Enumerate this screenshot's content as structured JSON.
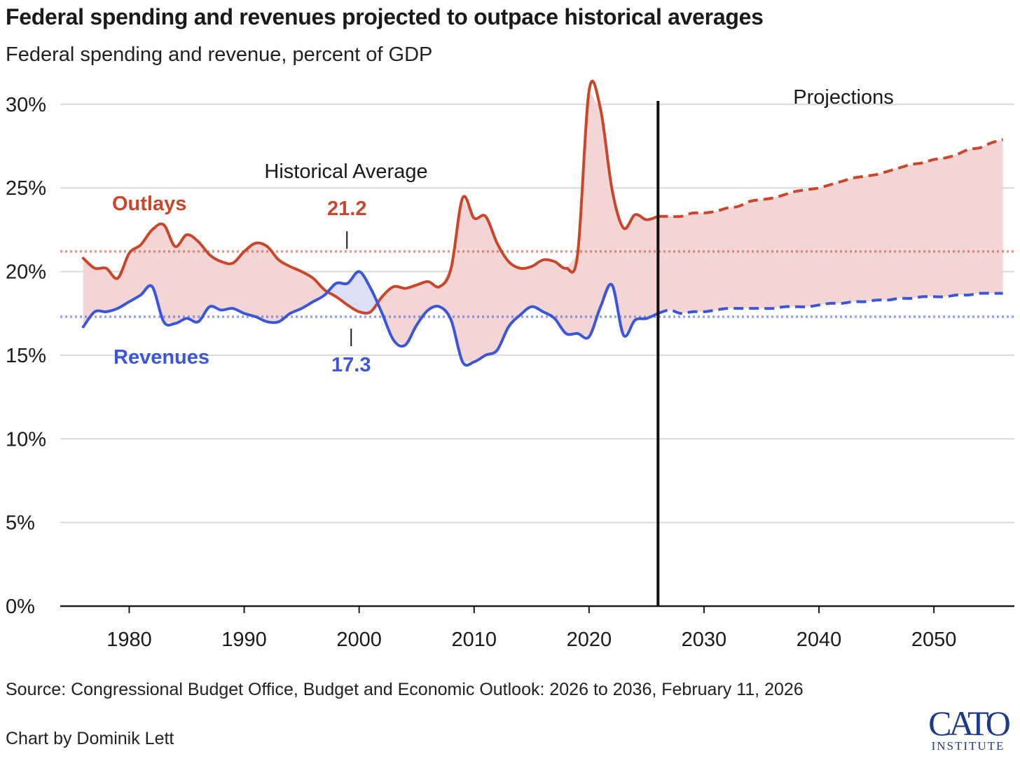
{
  "title": "Federal spending and revenues projected to outpace historical averages",
  "subtitle": "Federal spending and revenue, percent of GDP",
  "source": "Source: Congressional Budget Office, Budget and Economic Outlook: 2026 to 2036, February 11, 2026",
  "credit": "Chart by Dominik Lett",
  "logo": {
    "main": "CATO",
    "sub": "INSTITUTE"
  },
  "chart_data": {
    "type": "line",
    "xlim": [
      1974,
      2057
    ],
    "ylim": [
      0,
      31
    ],
    "y_ticks": [
      0,
      5,
      10,
      15,
      20,
      25,
      30
    ],
    "y_tick_labels": [
      "0%",
      "5%",
      "10%",
      "15%",
      "20%",
      "25%",
      "30%"
    ],
    "x_ticks": [
      1980,
      1990,
      2000,
      2010,
      2020,
      2030,
      2040,
      2050
    ],
    "x_tick_labels": [
      "1980",
      "1990",
      "2000",
      "2010",
      "2020",
      "2030",
      "2040",
      "2050"
    ],
    "grid": "horizontal",
    "projection_start": 2026,
    "projection_label": "Projections",
    "historical_average_label": "Historical Average",
    "averages": [
      {
        "series": "Outlays",
        "value": 21.2,
        "label": "21.2",
        "label_year": 1999
      },
      {
        "series": "Revenues",
        "value": 17.3,
        "label": "17.3",
        "label_year": 1999
      }
    ],
    "series": [
      {
        "name": "Outlays",
        "color": "#c9462b",
        "historical": [
          [
            1976,
            20.8
          ],
          [
            1977,
            20.2
          ],
          [
            1978,
            20.2
          ],
          [
            1979,
            19.6
          ],
          [
            1980,
            21.1
          ],
          [
            1981,
            21.6
          ],
          [
            1982,
            22.5
          ],
          [
            1983,
            22.8
          ],
          [
            1984,
            21.5
          ],
          [
            1985,
            22.2
          ],
          [
            1986,
            21.8
          ],
          [
            1987,
            21.0
          ],
          [
            1988,
            20.6
          ],
          [
            1989,
            20.5
          ],
          [
            1990,
            21.2
          ],
          [
            1991,
            21.7
          ],
          [
            1992,
            21.5
          ],
          [
            1993,
            20.7
          ],
          [
            1994,
            20.3
          ],
          [
            1995,
            20.0
          ],
          [
            1996,
            19.6
          ],
          [
            1997,
            18.9
          ],
          [
            1998,
            18.5
          ],
          [
            1999,
            18.0
          ],
          [
            2000,
            17.6
          ],
          [
            2001,
            17.6
          ],
          [
            2002,
            18.5
          ],
          [
            2003,
            19.1
          ],
          [
            2004,
            19.0
          ],
          [
            2005,
            19.2
          ],
          [
            2006,
            19.4
          ],
          [
            2007,
            19.1
          ],
          [
            2008,
            20.2
          ],
          [
            2009,
            24.4
          ],
          [
            2010,
            23.2
          ],
          [
            2011,
            23.3
          ],
          [
            2012,
            21.7
          ],
          [
            2013,
            20.6
          ],
          [
            2014,
            20.2
          ],
          [
            2015,
            20.3
          ],
          [
            2016,
            20.7
          ],
          [
            2017,
            20.6
          ],
          [
            2018,
            20.2
          ],
          [
            2019,
            21.0
          ],
          [
            2020,
            30.8
          ],
          [
            2021,
            29.7
          ],
          [
            2022,
            24.9
          ],
          [
            2023,
            22.6
          ],
          [
            2024,
            23.4
          ],
          [
            2025,
            23.1
          ],
          [
            2026,
            23.3
          ]
        ],
        "projected": [
          [
            2026,
            23.3
          ],
          [
            2027,
            23.3
          ],
          [
            2028,
            23.3
          ],
          [
            2029,
            23.5
          ],
          [
            2030,
            23.5
          ],
          [
            2031,
            23.6
          ],
          [
            2032,
            23.8
          ],
          [
            2033,
            23.9
          ],
          [
            2034,
            24.2
          ],
          [
            2035,
            24.3
          ],
          [
            2036,
            24.4
          ],
          [
            2037,
            24.6
          ],
          [
            2038,
            24.8
          ],
          [
            2039,
            24.9
          ],
          [
            2040,
            25.0
          ],
          [
            2041,
            25.2
          ],
          [
            2042,
            25.4
          ],
          [
            2043,
            25.6
          ],
          [
            2044,
            25.7
          ],
          [
            2045,
            25.8
          ],
          [
            2046,
            26.0
          ],
          [
            2047,
            26.2
          ],
          [
            2048,
            26.4
          ],
          [
            2049,
            26.5
          ],
          [
            2050,
            26.7
          ],
          [
            2051,
            26.8
          ],
          [
            2052,
            27.0
          ],
          [
            2053,
            27.3
          ],
          [
            2054,
            27.4
          ],
          [
            2055,
            27.7
          ],
          [
            2056,
            27.9
          ]
        ]
      },
      {
        "name": "Revenues",
        "color": "#3b57d8",
        "historical": [
          [
            1976,
            16.7
          ],
          [
            1977,
            17.6
          ],
          [
            1978,
            17.6
          ],
          [
            1979,
            17.8
          ],
          [
            1980,
            18.2
          ],
          [
            1981,
            18.6
          ],
          [
            1982,
            19.1
          ],
          [
            1983,
            17.0
          ],
          [
            1984,
            16.9
          ],
          [
            1985,
            17.2
          ],
          [
            1986,
            17.0
          ],
          [
            1987,
            17.9
          ],
          [
            1988,
            17.7
          ],
          [
            1989,
            17.8
          ],
          [
            1990,
            17.5
          ],
          [
            1991,
            17.3
          ],
          [
            1992,
            17.0
          ],
          [
            1993,
            17.0
          ],
          [
            1994,
            17.5
          ],
          [
            1995,
            17.8
          ],
          [
            1996,
            18.2
          ],
          [
            1997,
            18.6
          ],
          [
            1998,
            19.3
          ],
          [
            1999,
            19.3
          ],
          [
            2000,
            20.0
          ],
          [
            2001,
            19.0
          ],
          [
            2002,
            17.5
          ],
          [
            2003,
            15.9
          ],
          [
            2004,
            15.6
          ],
          [
            2005,
            16.8
          ],
          [
            2006,
            17.7
          ],
          [
            2007,
            17.9
          ],
          [
            2008,
            17.1
          ],
          [
            2009,
            14.6
          ],
          [
            2010,
            14.6
          ],
          [
            2011,
            15.0
          ],
          [
            2012,
            15.3
          ],
          [
            2013,
            16.7
          ],
          [
            2014,
            17.4
          ],
          [
            2015,
            17.9
          ],
          [
            2016,
            17.6
          ],
          [
            2017,
            17.2
          ],
          [
            2018,
            16.3
          ],
          [
            2019,
            16.3
          ],
          [
            2020,
            16.1
          ],
          [
            2021,
            17.9
          ],
          [
            2022,
            19.2
          ],
          [
            2023,
            16.2
          ],
          [
            2024,
            17.1
          ],
          [
            2025,
            17.2
          ],
          [
            2026,
            17.5
          ]
        ],
        "projected": [
          [
            2026,
            17.5
          ],
          [
            2027,
            17.7
          ],
          [
            2028,
            17.5
          ],
          [
            2029,
            17.6
          ],
          [
            2030,
            17.6
          ],
          [
            2031,
            17.7
          ],
          [
            2032,
            17.8
          ],
          [
            2033,
            17.8
          ],
          [
            2034,
            17.8
          ],
          [
            2035,
            17.8
          ],
          [
            2036,
            17.8
          ],
          [
            2037,
            17.9
          ],
          [
            2038,
            17.9
          ],
          [
            2039,
            17.9
          ],
          [
            2040,
            18.0
          ],
          [
            2041,
            18.1
          ],
          [
            2042,
            18.1
          ],
          [
            2043,
            18.2
          ],
          [
            2044,
            18.2
          ],
          [
            2045,
            18.3
          ],
          [
            2046,
            18.3
          ],
          [
            2047,
            18.4
          ],
          [
            2048,
            18.4
          ],
          [
            2049,
            18.5
          ],
          [
            2050,
            18.5
          ],
          [
            2051,
            18.5
          ],
          [
            2052,
            18.6
          ],
          [
            2053,
            18.6
          ],
          [
            2054,
            18.7
          ],
          [
            2055,
            18.7
          ],
          [
            2056,
            18.7
          ]
        ]
      }
    ]
  }
}
